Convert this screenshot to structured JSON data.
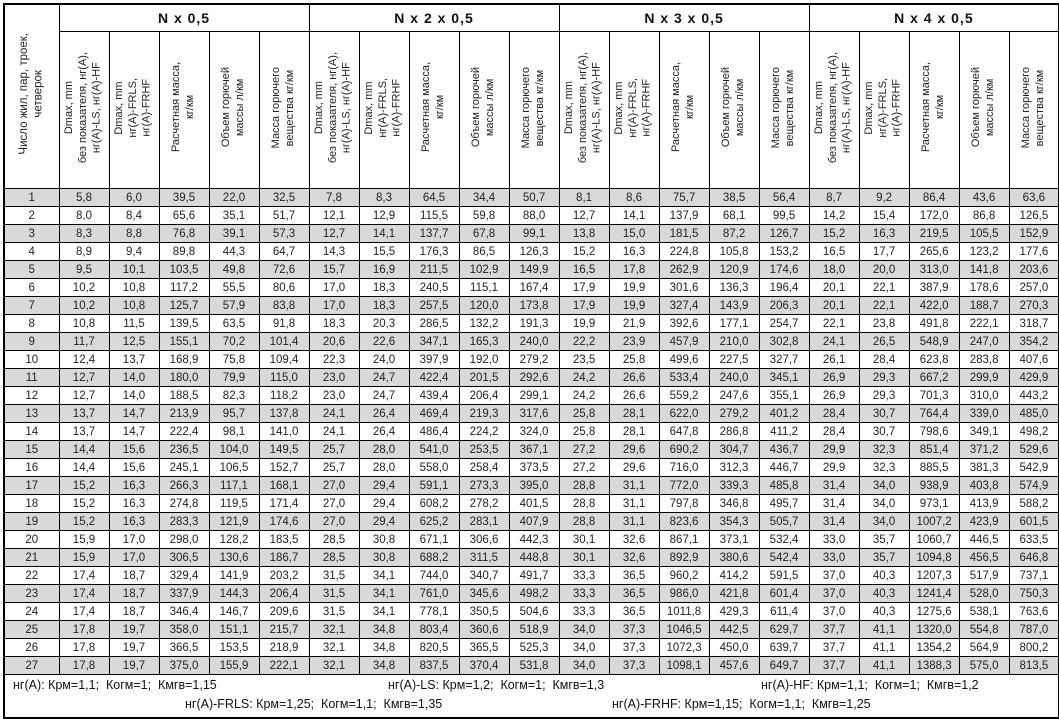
{
  "table": {
    "corner_header": "Число жил, пар, троек,\nчетверок",
    "groups": [
      {
        "label": "N x 0,5"
      },
      {
        "label": "N x 2 x 0,5"
      },
      {
        "label": "N x 3 x 0,5"
      },
      {
        "label": "N x 4 x 0,5"
      }
    ],
    "sub_headers": [
      "Dmax, mm\nбез показателя, нг(А),\nнг(А)-LS, нг(А)-HF",
      "Dmax, mm\nнг(А)-FRLS,\nнг(А)-FRHF",
      "Расчетная масса,\nкг/км",
      "Объем горючей\nмассы л/км",
      "Масса горючего\nвещества кг/км"
    ],
    "rows": [
      [
        "1",
        "5,8",
        "6,0",
        "39,5",
        "22,0",
        "32,5",
        "7,8",
        "8,3",
        "64,5",
        "34,4",
        "50,7",
        "8,1",
        "8,6",
        "75,7",
        "38,5",
        "56,4",
        "8,7",
        "9,2",
        "86,4",
        "43,6",
        "63,6"
      ],
      [
        "2",
        "8,0",
        "8,4",
        "65,6",
        "35,1",
        "51,7",
        "12,1",
        "12,9",
        "115,5",
        "59,8",
        "88,0",
        "12,7",
        "14,1",
        "137,9",
        "68,1",
        "99,5",
        "14,2",
        "15,4",
        "172,0",
        "86,8",
        "126,5"
      ],
      [
        "3",
        "8,3",
        "8,8",
        "76,8",
        "39,1",
        "57,3",
        "12,7",
        "14,1",
        "137,7",
        "67,8",
        "99,1",
        "13,8",
        "15,0",
        "181,5",
        "87,2",
        "126,7",
        "15,2",
        "16,3",
        "219,5",
        "105,5",
        "152,9"
      ],
      [
        "4",
        "8,9",
        "9,4",
        "89,8",
        "44,3",
        "64,7",
        "14,3",
        "15,5",
        "176,3",
        "86,5",
        "126,3",
        "15,2",
        "16,3",
        "224,8",
        "105,8",
        "153,2",
        "16,5",
        "17,7",
        "265,6",
        "123,2",
        "177,6"
      ],
      [
        "5",
        "9,5",
        "10,1",
        "103,5",
        "49,8",
        "72,6",
        "15,7",
        "16,9",
        "211,5",
        "102,9",
        "149,9",
        "16,5",
        "17,8",
        "262,9",
        "120,9",
        "174,6",
        "18,0",
        "20,0",
        "313,0",
        "141,8",
        "203,6"
      ],
      [
        "6",
        "10,2",
        "10,8",
        "117,2",
        "55,5",
        "80,6",
        "17,0",
        "18,3",
        "240,5",
        "115,1",
        "167,4",
        "17,9",
        "19,9",
        "301,6",
        "136,3",
        "196,4",
        "20,1",
        "22,1",
        "387,9",
        "178,6",
        "257,0"
      ],
      [
        "7",
        "10,2",
        "10,8",
        "125,7",
        "57,9",
        "83,8",
        "17,0",
        "18,3",
        "257,5",
        "120,0",
        "173,8",
        "17,9",
        "19,9",
        "327,4",
        "143,9",
        "206,3",
        "20,1",
        "22,1",
        "422,0",
        "188,7",
        "270,3"
      ],
      [
        "8",
        "10,8",
        "11,5",
        "139,5",
        "63,5",
        "91,8",
        "18,3",
        "20,3",
        "286,5",
        "132,2",
        "191,3",
        "19,9",
        "21,9",
        "392,6",
        "177,1",
        "254,7",
        "22,1",
        "23,8",
        "491,8",
        "222,1",
        "318,7"
      ],
      [
        "9",
        "11,7",
        "12,5",
        "155,1",
        "70,2",
        "101,4",
        "20,6",
        "22,6",
        "347,1",
        "165,3",
        "240,0",
        "22,2",
        "23,9",
        "457,9",
        "210,0",
        "302,8",
        "24,1",
        "26,5",
        "548,9",
        "247,0",
        "354,2"
      ],
      [
        "10",
        "12,4",
        "13,7",
        "168,9",
        "75,8",
        "109,4",
        "22,3",
        "24,0",
        "397,9",
        "192,0",
        "279,2",
        "23,5",
        "25,8",
        "499,6",
        "227,5",
        "327,7",
        "26,1",
        "28,4",
        "623,8",
        "283,8",
        "407,6"
      ],
      [
        "11",
        "12,7",
        "14,0",
        "180,0",
        "79,9",
        "115,0",
        "23,0",
        "24,7",
        "422,4",
        "201,5",
        "292,6",
        "24,2",
        "26,6",
        "533,4",
        "240,0",
        "345,1",
        "26,9",
        "29,3",
        "667,2",
        "299,9",
        "429,9"
      ],
      [
        "12",
        "12,7",
        "14,0",
        "188,5",
        "82,3",
        "118,2",
        "23,0",
        "24,7",
        "439,4",
        "206,4",
        "299,1",
        "24,2",
        "26,6",
        "559,2",
        "247,6",
        "355,1",
        "26,9",
        "29,3",
        "701,3",
        "310,0",
        "443,2"
      ],
      [
        "13",
        "13,7",
        "14,7",
        "213,9",
        "95,7",
        "137,8",
        "24,1",
        "26,4",
        "469,4",
        "219,3",
        "317,6",
        "25,8",
        "28,1",
        "622,0",
        "279,2",
        "401,2",
        "28,4",
        "30,7",
        "764,4",
        "339,0",
        "485,0"
      ],
      [
        "14",
        "13,7",
        "14,7",
        "222,4",
        "98,1",
        "141,0",
        "24,1",
        "26,4",
        "486,4",
        "224,2",
        "324,0",
        "25,8",
        "28,1",
        "647,8",
        "286,8",
        "411,2",
        "28,4",
        "30,7",
        "798,6",
        "349,1",
        "498,2"
      ],
      [
        "15",
        "14,4",
        "15,6",
        "236,5",
        "104,0",
        "149,5",
        "25,7",
        "28,0",
        "541,0",
        "253,5",
        "367,1",
        "27,2",
        "29,6",
        "690,2",
        "304,7",
        "436,7",
        "29,9",
        "32,3",
        "851,4",
        "371,2",
        "529,6"
      ],
      [
        "16",
        "14,4",
        "15,6",
        "245,1",
        "106,5",
        "152,7",
        "25,7",
        "28,0",
        "558,0",
        "258,4",
        "373,5",
        "27,2",
        "29,6",
        "716,0",
        "312,3",
        "446,7",
        "29,9",
        "32,3",
        "885,5",
        "381,3",
        "542,9"
      ],
      [
        "17",
        "15,2",
        "16,3",
        "266,3",
        "117,1",
        "168,1",
        "27,0",
        "29,4",
        "591,1",
        "273,3",
        "395,0",
        "28,8",
        "31,1",
        "772,0",
        "339,3",
        "485,8",
        "31,4",
        "34,0",
        "938,9",
        "403,8",
        "574,9"
      ],
      [
        "18",
        "15,2",
        "16,3",
        "274,8",
        "119,5",
        "171,4",
        "27,0",
        "29,4",
        "608,2",
        "278,2",
        "401,5",
        "28,8",
        "31,1",
        "797,8",
        "346,8",
        "495,7",
        "31,4",
        "34,0",
        "973,1",
        "413,9",
        "588,2"
      ],
      [
        "19",
        "15,2",
        "16,3",
        "283,3",
        "121,9",
        "174,6",
        "27,0",
        "29,4",
        "625,2",
        "283,1",
        "407,9",
        "28,8",
        "31,1",
        "823,6",
        "354,3",
        "505,7",
        "31,4",
        "34,0",
        "1007,2",
        "423,9",
        "601,5"
      ],
      [
        "20",
        "15,9",
        "17,0",
        "298,0",
        "128,2",
        "183,5",
        "28,5",
        "30,8",
        "671,1",
        "306,6",
        "442,3",
        "30,1",
        "32,6",
        "867,1",
        "373,1",
        "532,4",
        "33,0",
        "35,7",
        "1060,7",
        "446,5",
        "633,5"
      ],
      [
        "21",
        "15,9",
        "17,0",
        "306,5",
        "130,6",
        "186,7",
        "28,5",
        "30,8",
        "688,2",
        "311,5",
        "448,8",
        "30,1",
        "32,6",
        "892,9",
        "380,6",
        "542,4",
        "33,0",
        "35,7",
        "1094,8",
        "456,5",
        "646,8"
      ],
      [
        "22",
        "17,4",
        "18,7",
        "329,4",
        "141,9",
        "203,2",
        "31,5",
        "34,1",
        "744,0",
        "340,7",
        "491,7",
        "33,3",
        "36,5",
        "960,2",
        "414,2",
        "591,5",
        "37,0",
        "40,3",
        "1207,3",
        "517,9",
        "737,1"
      ],
      [
        "23",
        "17,4",
        "18,7",
        "337,9",
        "144,3",
        "206,4",
        "31,5",
        "34,1",
        "761,0",
        "345,6",
        "498,2",
        "33,3",
        "36,5",
        "986,0",
        "421,8",
        "601,4",
        "37,0",
        "40,3",
        "1241,4",
        "528,0",
        "750,3"
      ],
      [
        "24",
        "17,4",
        "18,7",
        "346,4",
        "146,7",
        "209,6",
        "31,5",
        "34,1",
        "778,1",
        "350,5",
        "504,6",
        "33,3",
        "36,5",
        "1011,8",
        "429,3",
        "611,4",
        "37,0",
        "40,3",
        "1275,6",
        "538,1",
        "763,6"
      ],
      [
        "25",
        "17,8",
        "19,7",
        "358,0",
        "151,1",
        "215,7",
        "32,1",
        "34,8",
        "803,4",
        "360,6",
        "518,9",
        "34,0",
        "37,3",
        "1046,5",
        "442,5",
        "629,7",
        "37,7",
        "41,1",
        "1320,0",
        "554,8",
        "787,0"
      ],
      [
        "26",
        "17,8",
        "19,7",
        "366,5",
        "153,5",
        "218,9",
        "32,1",
        "34,8",
        "820,5",
        "365,5",
        "525,3",
        "34,0",
        "37,3",
        "1072,3",
        "450,0",
        "639,7",
        "37,7",
        "41,1",
        "1354,2",
        "564,9",
        "800,2"
      ],
      [
        "27",
        "17,8",
        "19,7",
        "375,0",
        "155,9",
        "222,1",
        "32,1",
        "34,8",
        "837,5",
        "370,4",
        "531,8",
        "34,0",
        "37,3",
        "1098,1",
        "457,6",
        "649,7",
        "37,7",
        "41,1",
        "1388,3",
        "575,0",
        "813,5"
      ]
    ],
    "footer": {
      "line1": [
        "нг(А): Крм=1,1;  Когм=1;  Кмгв=1,15",
        "нг(А)-LS: Крм=1,2;  Когм=1;  Кмгв=1,3",
        "нг(А)-HF: Крм=1,1;  Когм=1;  Кмгв=1,2"
      ],
      "line2": [
        "нг(А)-FRLS: Крм=1,25;  Когм=1,1;  Кмгв=1,35",
        "нг(А)-FRHF: Крм=1,15;  Когм=1,1;  Кмгв=1,25"
      ]
    },
    "colors": {
      "row_shade": "#d9d9d9",
      "border": "#000000",
      "background": "#ffffff"
    }
  }
}
